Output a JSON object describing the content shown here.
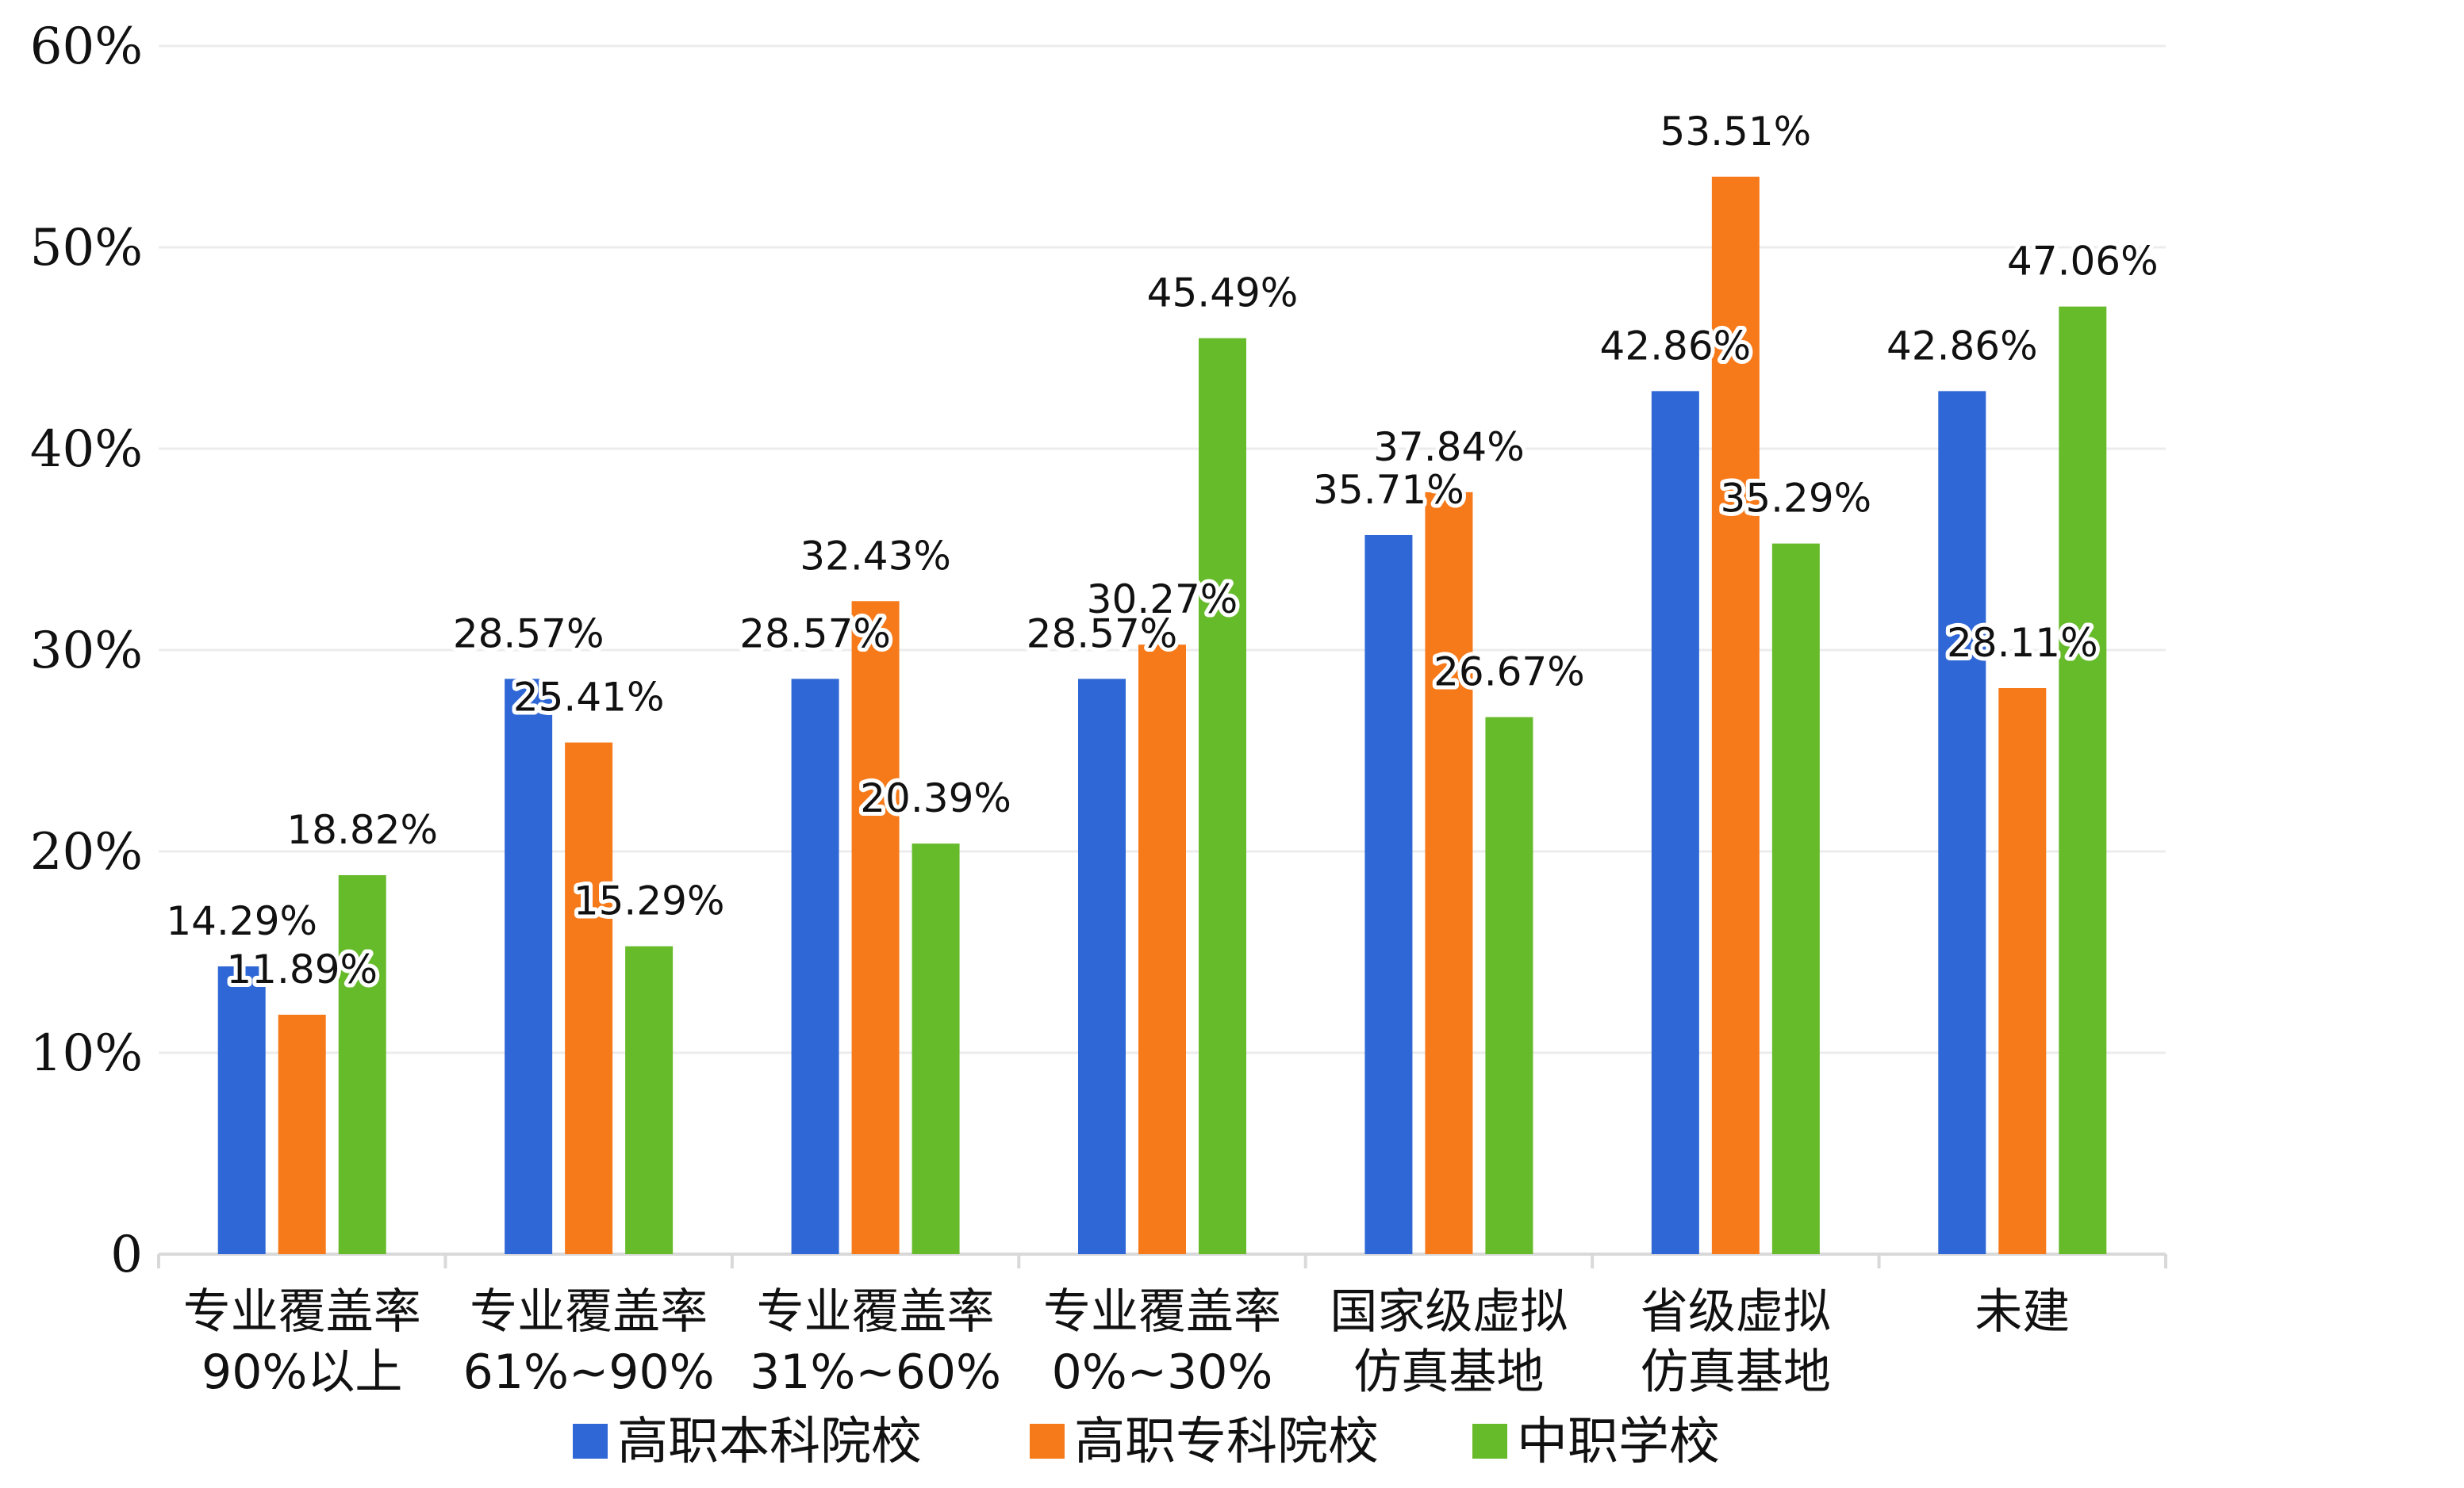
{
  "chart_data": {
    "type": "bar",
    "categories": [
      [
        "专业覆盖率",
        "90%以上"
      ],
      [
        "专业覆盖率",
        "61%~90%"
      ],
      [
        "专业覆盖率",
        "31%~60%"
      ],
      [
        "专业覆盖率",
        "0%~30%"
      ],
      [
        "国家级虚拟",
        "仿真基地"
      ],
      [
        "省级虚拟",
        "仿真基地"
      ],
      [
        "未建"
      ]
    ],
    "series": [
      {
        "name": "高职本科院校",
        "color": "#2f67d6",
        "values": [
          14.29,
          28.57,
          28.57,
          28.57,
          35.71,
          42.86,
          42.86
        ],
        "labels": [
          "14.29%",
          "28.57%",
          "28.57%",
          "28.57%",
          "35.71%",
          "42.86%",
          "42.86%"
        ]
      },
      {
        "name": "高职专科院校",
        "color": "#f77a1a",
        "values": [
          11.89,
          25.41,
          32.43,
          30.27,
          37.84,
          53.51,
          28.11
        ],
        "labels": [
          "11.89%",
          "25.41%",
          "32.43%",
          "30.27%",
          "37.84%",
          "53.51%",
          "28.11%"
        ]
      },
      {
        "name": "中职学校",
        "color": "#66bb2a",
        "values": [
          18.82,
          15.29,
          20.39,
          45.49,
          26.67,
          35.29,
          47.06
        ],
        "labels": [
          "18.82%",
          "15.29%",
          "20.39%",
          "45.49%",
          "26.67%",
          "35.29%",
          "47.06%"
        ]
      }
    ],
    "yaxis": {
      "min": 0,
      "max": 60,
      "ticks": [
        0,
        10,
        20,
        30,
        40,
        50,
        60
      ],
      "tick_labels": [
        "0",
        "10%",
        "20%",
        "30%",
        "40%",
        "50%",
        "60%"
      ]
    },
    "grid": true,
    "legend_position": "bottom",
    "title": "",
    "xlabel": "",
    "ylabel": ""
  }
}
